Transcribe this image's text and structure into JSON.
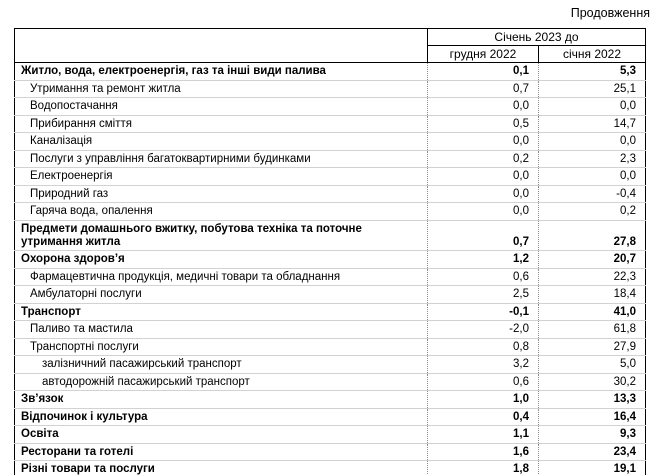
{
  "page": {
    "continuation_label": "Продовження"
  },
  "table": {
    "header": {
      "period_title": "Січень 2023 до",
      "col_dec": "грудня 2022",
      "col_jan": "січня 2022"
    },
    "rows": [
      {
        "label": "Житло, вода, електроенергія, газ та інші види палива",
        "dec": "0,1",
        "jan": "5,3",
        "level": "category"
      },
      {
        "label": "Утримання та ремонт житла",
        "dec": "0,7",
        "jan": "25,1",
        "level": "item"
      },
      {
        "label": "Водопостачання",
        "dec": "0,0",
        "jan": "0,0",
        "level": "item"
      },
      {
        "label": "Прибирання сміття",
        "dec": "0,5",
        "jan": "14,7",
        "level": "item"
      },
      {
        "label": "Каналізація",
        "dec": "0,0",
        "jan": "0,0",
        "level": "item"
      },
      {
        "label": "Послуги з управління багатоквартирними будинками",
        "dec": "0,2",
        "jan": "2,3",
        "level": "item"
      },
      {
        "label": "Електроенергія",
        "dec": "0,0",
        "jan": "0,0",
        "level": "item"
      },
      {
        "label": "Природний газ",
        "dec": "0,0",
        "jan": "-0,4",
        "level": "item"
      },
      {
        "label": "Гаряча вода, опалення",
        "dec": "0,0",
        "jan": "0,2",
        "level": "item"
      },
      {
        "label": "Предмети домашнього вжитку, побутова техніка та поточне\nутримання житла",
        "dec": "0,7",
        "jan": "27,8",
        "level": "category"
      },
      {
        "label": "Охорона здоров’я",
        "dec": "1,2",
        "jan": "20,7",
        "level": "category"
      },
      {
        "label": "Фармацевтична продукція, медичні товари та обладнання",
        "dec": "0,6",
        "jan": "22,3",
        "level": "item"
      },
      {
        "label": "Амбулаторні послуги",
        "dec": "2,5",
        "jan": "18,4",
        "level": "item"
      },
      {
        "label": "Транспорт",
        "dec": "-0,1",
        "jan": "41,0",
        "level": "category"
      },
      {
        "label": "Паливо та мастила",
        "dec": "-2,0",
        "jan": "61,8",
        "level": "item"
      },
      {
        "label": "Транспортні послуги",
        "dec": "0,8",
        "jan": "27,9",
        "level": "item"
      },
      {
        "label": "залізничний пасажирський транспорт",
        "dec": "3,2",
        "jan": "5,0",
        "level": "subitem"
      },
      {
        "label": "автодорожній пасажирський транспорт",
        "dec": "0,6",
        "jan": "30,2",
        "level": "subitem"
      },
      {
        "label": "Зв’язок",
        "dec": "1,0",
        "jan": "13,3",
        "level": "category"
      },
      {
        "label": "Відпочинок і культура",
        "dec": "0,4",
        "jan": "16,4",
        "level": "category"
      },
      {
        "label": "Освіта",
        "dec": "1,1",
        "jan": "9,3",
        "level": "category"
      },
      {
        "label": "Ресторани та готелі",
        "dec": "1,6",
        "jan": "23,4",
        "level": "category"
      },
      {
        "label": "Різні товари та послуги",
        "dec": "1,8",
        "jan": "19,1",
        "level": "category"
      }
    ]
  }
}
